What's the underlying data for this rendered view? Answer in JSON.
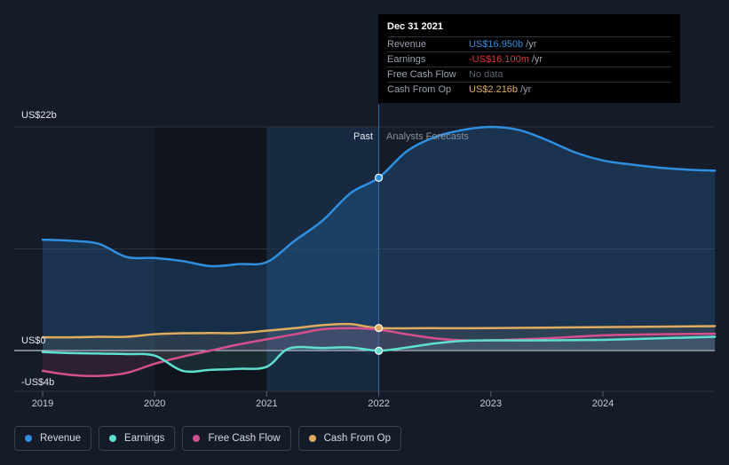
{
  "chart_data": {
    "type": "line",
    "x_ticks": [
      "2019",
      "2020",
      "2021",
      "2022",
      "2023",
      "2024"
    ],
    "ylim": [
      -4,
      22
    ],
    "y_labels": {
      "top": "US$22b",
      "zero": "US$0",
      "bottom": "-US$4b"
    },
    "past_label": "Past",
    "forecast_label": "Analysts Forecasts",
    "divider_x": 2022.0,
    "series": [
      {
        "name": "Revenue",
        "color": "#2f8fde",
        "fill": true,
        "points": [
          [
            2019,
            10.9
          ],
          [
            2019.25,
            10.8
          ],
          [
            2019.5,
            10.5
          ],
          [
            2019.75,
            9.2
          ],
          [
            2020,
            9.1
          ],
          [
            2020.25,
            8.8
          ],
          [
            2020.5,
            8.3
          ],
          [
            2020.75,
            8.5
          ],
          [
            2021,
            8.7
          ],
          [
            2021.25,
            10.8
          ],
          [
            2021.5,
            12.8
          ],
          [
            2021.75,
            15.5
          ],
          [
            2022,
            17.0
          ],
          [
            2022.25,
            19.6
          ],
          [
            2022.5,
            21.0
          ],
          [
            2022.75,
            21.7
          ],
          [
            2023,
            22.0
          ],
          [
            2023.25,
            21.7
          ],
          [
            2023.5,
            20.7
          ],
          [
            2023.75,
            19.5
          ],
          [
            2024,
            18.7
          ],
          [
            2024.25,
            18.3
          ],
          [
            2024.5,
            18.0
          ],
          [
            2024.75,
            17.8
          ],
          [
            2025,
            17.7
          ]
        ]
      },
      {
        "name": "Earnings",
        "color": "#5ee0cf",
        "fill": false,
        "points": [
          [
            2019,
            -0.15
          ],
          [
            2019.25,
            -0.25
          ],
          [
            2019.5,
            -0.3
          ],
          [
            2019.75,
            -0.35
          ],
          [
            2020,
            -0.5
          ],
          [
            2020.25,
            -2.0
          ],
          [
            2020.5,
            -1.9
          ],
          [
            2020.75,
            -1.8
          ],
          [
            2021,
            -1.6
          ],
          [
            2021.2,
            0.2
          ],
          [
            2021.5,
            0.25
          ],
          [
            2021.75,
            0.3
          ],
          [
            2022,
            -0.02
          ],
          [
            2022.25,
            0.3
          ],
          [
            2022.5,
            0.7
          ],
          [
            2022.75,
            0.95
          ],
          [
            2023,
            1.0
          ],
          [
            2023.5,
            1.0
          ],
          [
            2024,
            1.05
          ],
          [
            2024.5,
            1.2
          ],
          [
            2025,
            1.35
          ]
        ]
      },
      {
        "name": "Free Cash Flow",
        "color": "#d44f8d",
        "fill": false,
        "points": [
          [
            2019,
            -2.0
          ],
          [
            2019.25,
            -2.4
          ],
          [
            2019.5,
            -2.5
          ],
          [
            2019.75,
            -2.2
          ],
          [
            2020,
            -1.3
          ],
          [
            2020.25,
            -0.6
          ],
          [
            2020.5,
            0.0
          ],
          [
            2020.75,
            0.6
          ],
          [
            2021,
            1.1
          ],
          [
            2021.25,
            1.6
          ],
          [
            2021.5,
            2.1
          ],
          [
            2021.75,
            2.2
          ],
          [
            2022,
            2.05
          ],
          [
            2022.25,
            1.6
          ],
          [
            2022.5,
            1.2
          ],
          [
            2022.75,
            1.0
          ],
          [
            2023,
            1.0
          ],
          [
            2023.5,
            1.2
          ],
          [
            2024,
            1.5
          ],
          [
            2024.5,
            1.6
          ],
          [
            2025,
            1.65
          ]
        ]
      },
      {
        "name": "Cash From Op",
        "color": "#e0ac5e",
        "fill": false,
        "points": [
          [
            2019,
            1.3
          ],
          [
            2019.25,
            1.3
          ],
          [
            2019.5,
            1.35
          ],
          [
            2019.75,
            1.35
          ],
          [
            2020,
            1.6
          ],
          [
            2020.25,
            1.7
          ],
          [
            2020.5,
            1.72
          ],
          [
            2020.75,
            1.72
          ],
          [
            2021,
            1.95
          ],
          [
            2021.25,
            2.2
          ],
          [
            2021.5,
            2.5
          ],
          [
            2021.75,
            2.6
          ],
          [
            2022,
            2.22
          ],
          [
            2022.5,
            2.2
          ],
          [
            2023,
            2.2
          ],
          [
            2023.5,
            2.25
          ],
          [
            2024,
            2.3
          ],
          [
            2024.5,
            2.35
          ],
          [
            2025,
            2.4
          ]
        ]
      }
    ]
  },
  "tooltip": {
    "date": "Dec 31 2021",
    "rows": [
      {
        "label": "Revenue",
        "value": "US$16.950b",
        "unit": "/yr",
        "color": "#2f8fde"
      },
      {
        "label": "Earnings",
        "value": "-US$16.100m",
        "unit": "/yr",
        "color": "#e0353a"
      },
      {
        "label": "Free Cash Flow",
        "value": "No data",
        "unit": "",
        "color": "#5a606c"
      },
      {
        "label": "Cash From Op",
        "value": "US$2.216b",
        "unit": "/yr",
        "color": "#e0ac5e"
      }
    ]
  },
  "legend": [
    {
      "label": "Revenue",
      "color": "#2f8fde"
    },
    {
      "label": "Earnings",
      "color": "#5ee0cf"
    },
    {
      "label": "Free Cash Flow",
      "color": "#d44f8d"
    },
    {
      "label": "Cash From Op",
      "color": "#e0ac5e"
    }
  ]
}
